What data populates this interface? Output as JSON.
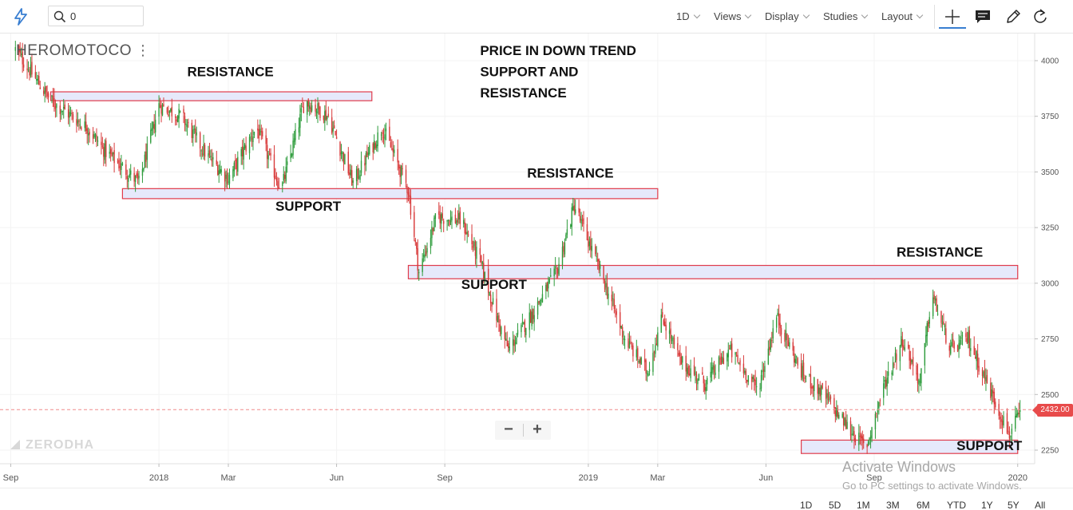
{
  "app": {
    "search": {
      "value": "0"
    },
    "toolbar": {
      "interval": "1D",
      "views": "Views",
      "display": "Display",
      "studies": "Studies",
      "layout": "Layout"
    },
    "symbol": "HEROMOTOCO",
    "watermark": "ZERODHA",
    "ranges": [
      "1D",
      "5D",
      "1M",
      "3M",
      "6M",
      "YTD",
      "1Y",
      "5Y",
      "All"
    ],
    "os_notice": {
      "line1": "Activate Windows",
      "line2": "Go to PC settings to activate Windows."
    }
  },
  "chart_data": {
    "type": "candlestick",
    "symbol": "HEROMOTOCO",
    "interval": "1D",
    "x_axis": {
      "tick_labels": [
        "Sep",
        "2018",
        "Mar",
        "Jun",
        "Sep",
        "2019",
        "Mar",
        "Jun",
        "Sep",
        "2020"
      ],
      "range": [
        "2017-09",
        "2020-01"
      ]
    },
    "y_axis": {
      "tick_labels": [
        4000,
        3750,
        3500,
        3250,
        3000,
        2750,
        2500,
        2250
      ],
      "ylim": [
        2190,
        4100
      ],
      "position": "right"
    },
    "last_price": "2432.00",
    "series": [
      {
        "points": [
          [
            "2017-09-01",
            4050
          ],
          [
            "2017-10-01",
            3820
          ],
          [
            "2017-11-01",
            3700
          ],
          [
            "2017-11-15",
            3600
          ],
          [
            "2017-12-15",
            3450
          ],
          [
            "2018-01-01",
            3800
          ],
          [
            "2018-01-20",
            3750
          ],
          [
            "2018-02-10",
            3580
          ],
          [
            "2018-03-01",
            3470
          ],
          [
            "2018-03-25",
            3700
          ],
          [
            "2018-04-15",
            3420
          ],
          [
            "2018-05-05",
            3820
          ],
          [
            "2018-05-25",
            3750
          ],
          [
            "2018-06-15",
            3450
          ],
          [
            "2018-07-10",
            3700
          ],
          [
            "2018-08-01",
            3420
          ],
          [
            "2018-08-10",
            3050
          ],
          [
            "2018-08-25",
            3300
          ],
          [
            "2018-09-15",
            3280
          ],
          [
            "2018-10-01",
            3100
          ],
          [
            "2018-10-15",
            2850
          ],
          [
            "2018-10-25",
            2700
          ],
          [
            "2018-11-15",
            2870
          ],
          [
            "2018-12-05",
            3050
          ],
          [
            "2018-12-20",
            3350
          ],
          [
            "2019-01-15",
            3000
          ],
          [
            "2019-02-01",
            2750
          ],
          [
            "2019-02-20",
            2600
          ],
          [
            "2019-03-05",
            2850
          ],
          [
            "2019-03-20",
            2650
          ],
          [
            "2019-04-10",
            2550
          ],
          [
            "2019-05-01",
            2700
          ],
          [
            "2019-05-25",
            2520
          ],
          [
            "2019-06-10",
            2850
          ],
          [
            "2019-07-01",
            2600
          ],
          [
            "2019-07-20",
            2500
          ],
          [
            "2019-08-10",
            2350
          ],
          [
            "2019-08-25",
            2260
          ],
          [
            "2019-09-10",
            2550
          ],
          [
            "2019-09-25",
            2750
          ],
          [
            "2019-10-10",
            2550
          ],
          [
            "2019-10-20",
            2950
          ],
          [
            "2019-11-05",
            2700
          ],
          [
            "2019-11-20",
            2750
          ],
          [
            "2019-12-10",
            2500
          ],
          [
            "2019-12-25",
            2320
          ],
          [
            "2020-01-05",
            2432
          ]
        ]
      }
    ],
    "zones": [
      {
        "kind": "resistance",
        "from": "2017-10",
        "to": "2018-07",
        "price_low": 3820,
        "price_high": 3860
      },
      {
        "kind": "support",
        "from": "2017-12",
        "to": "2019-03",
        "price_low": 3380,
        "price_high": 3425
      },
      {
        "kind": "support_resistance",
        "from": "2018-08",
        "to": "2020-01",
        "price_low": 3020,
        "price_high": 3080
      },
      {
        "kind": "support",
        "from": "2019-07",
        "to": "2020-01",
        "price_low": 2235,
        "price_high": 2295
      }
    ],
    "annotations": [
      {
        "text": "RESISTANCE",
        "x": "2018-01-25",
        "y": 3930
      },
      {
        "text": "PRICE IN DOWN TREND",
        "x": "2018-10-01",
        "y": 4025
      },
      {
        "text": "SUPPORT AND",
        "x": "2018-10-01",
        "y": 3930
      },
      {
        "text": "RESISTANCE",
        "x": "2018-10-01",
        "y": 3835
      },
      {
        "text": "RESISTANCE",
        "x": "2018-11-10",
        "y": 3475
      },
      {
        "text": "SUPPORT",
        "x": "2018-04-10",
        "y": 3325
      },
      {
        "text": "RESISTANCE",
        "x": "2019-09-20",
        "y": 3120
      },
      {
        "text": "SUPPORT",
        "x": "2018-09-15",
        "y": 2975
      },
      {
        "text": "SUPPORT",
        "x": "2019-11-10",
        "y": 2250
      }
    ]
  }
}
